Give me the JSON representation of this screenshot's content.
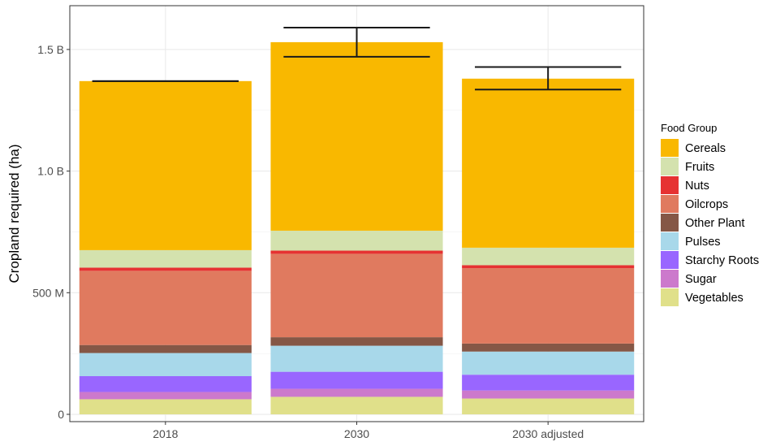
{
  "chart_data": {
    "type": "bar",
    "stacked": true,
    "categories": [
      "2018",
      "2030",
      "2030 adjusted"
    ],
    "ylabel": "Cropland required (ha)",
    "xlabel": "",
    "ylim": [
      -30000000,
      1680000000
    ],
    "yticks": [
      {
        "value": 0,
        "label": "0"
      },
      {
        "value": 500000000,
        "label": "500 M"
      },
      {
        "value": 1000000000,
        "label": "1.0 B"
      },
      {
        "value": 1500000000,
        "label": "1.5 B"
      }
    ],
    "grid": true,
    "legend_position": "right",
    "legend_title": "Food Group",
    "series": [
      {
        "name": "Vegetables",
        "color": "#E0E08A",
        "values": [
          62000000,
          72000000,
          65000000
        ]
      },
      {
        "name": "Sugar",
        "color": "#CC79CC",
        "values": [
          30000000,
          33000000,
          33000000
        ]
      },
      {
        "name": "Starchy Roots",
        "color": "#9966FF",
        "values": [
          65000000,
          70000000,
          65000000
        ]
      },
      {
        "name": "Pulses",
        "color": "#A8D8EA",
        "values": [
          95000000,
          107000000,
          95000000
        ]
      },
      {
        "name": "Other Plant",
        "color": "#855746",
        "values": [
          33000000,
          35000000,
          33000000
        ]
      },
      {
        "name": "Oilcrops",
        "color": "#E07A5F",
        "values": [
          305000000,
          343000000,
          310000000
        ]
      },
      {
        "name": "Nuts",
        "color": "#E63232",
        "values": [
          13000000,
          13000000,
          12000000
        ]
      },
      {
        "name": "Fruits",
        "color": "#D4E2AE",
        "values": [
          72000000,
          82000000,
          72000000
        ]
      },
      {
        "name": "Cereals",
        "color": "#F9B800",
        "values": [
          695000000,
          775000000,
          695000000
        ]
      }
    ],
    "legend_order": [
      "Cereals",
      "Fruits",
      "Nuts",
      "Oilcrops",
      "Other Plant",
      "Pulses",
      "Starchy Roots",
      "Sugar",
      "Vegetables"
    ],
    "error_bars": [
      {
        "category": "2018",
        "low": 1370000000,
        "high": 1370000000
      },
      {
        "category": "2030",
        "low": 1470000000,
        "high": 1590000000
      },
      {
        "category": "2030 adjusted",
        "low": 1335000000,
        "high": 1428000000
      }
    ]
  }
}
